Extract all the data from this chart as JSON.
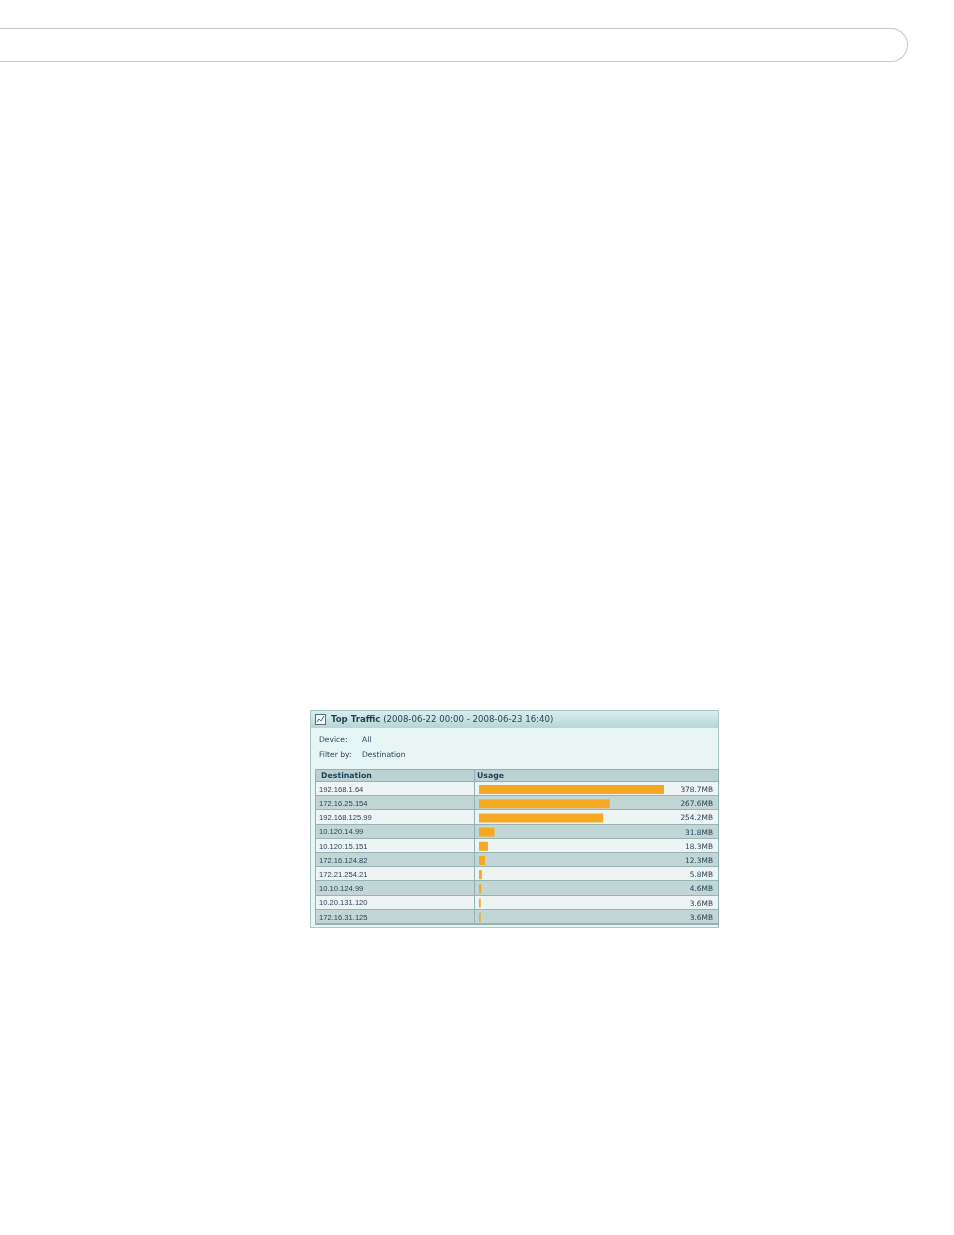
{
  "chart_data": {
    "type": "bar",
    "orientation": "horizontal",
    "title": "Top Traffic",
    "subtitle": "(2008-06-22 00:00 - 2008-06-23 16:40)",
    "annotations": [
      "Device:",
      "All",
      "Filter by:",
      "Destination"
    ],
    "ylabel": "Destination",
    "xlabel": "Usage",
    "categories": [
      "192.168.1.64",
      "172.16.25.154",
      "192.168.125.99",
      "10.120.14.99",
      "10.120.15.151",
      "172.16.124.82",
      "172.21.254.21",
      "10.10.124.99",
      "10.20.131.120",
      "172.16.31.125"
    ],
    "values": [
      378.7,
      267.6,
      254.2,
      31.8,
      18.3,
      12.3,
      5.8,
      4.6,
      3.6,
      3.6
    ],
    "value_labels": [
      "378.7MB",
      "267.6MB",
      "254.2MB",
      "31.8MB",
      "18.3MB",
      "12.3MB",
      "5.8MB",
      "4.6MB",
      "3.6MB",
      "3.6MB"
    ],
    "color": "#f7a823"
  }
}
